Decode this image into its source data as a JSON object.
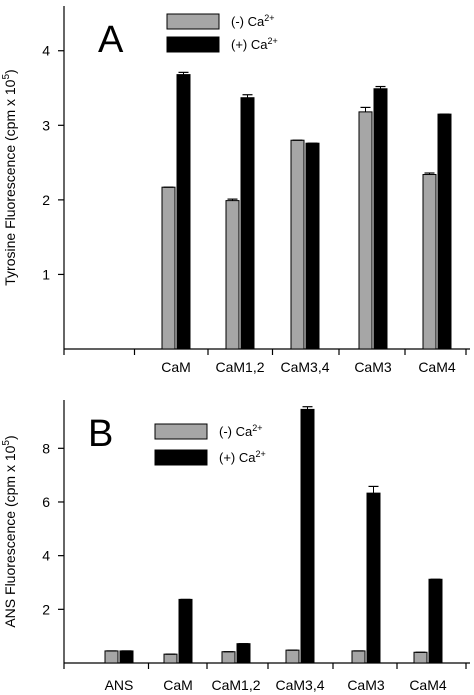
{
  "chart_data": [
    {
      "type": "bar",
      "panel_label": "A",
      "ylabel": "Tyrosine Fluorescence (cpm x 10",
      "ylabel_sup": "5",
      "ylabel_close": ")",
      "ylim": [
        0,
        4.6
      ],
      "yticks": [
        1,
        2,
        3,
        4
      ],
      "categories": [
        "",
        "CaM",
        "CaM1,2",
        "CaM3,4",
        "CaM3",
        "CaM4"
      ],
      "series": [
        {
          "name": "(-) Ca",
          "name_sup": "2+",
          "color": "#a6a6a6",
          "values": [
            null,
            2.17,
            1.99,
            2.8,
            3.18,
            2.34
          ],
          "errors": [
            null,
            0.0,
            0.02,
            0.0,
            0.06,
            0.02
          ]
        },
        {
          "name": "(+) Ca",
          "name_sup": "2+",
          "color": "#000000",
          "values": [
            null,
            3.68,
            3.37,
            2.76,
            3.49,
            3.15
          ],
          "errors": [
            null,
            0.03,
            0.04,
            0.0,
            0.03,
            0.0
          ]
        }
      ],
      "legend_position": "top"
    },
    {
      "type": "bar",
      "panel_label": "B",
      "ylabel": "ANS Fluorescence (cpm x 10",
      "ylabel_sup": "5",
      "ylabel_close": ")",
      "ylim": [
        0,
        9.8
      ],
      "yticks": [
        2,
        4,
        6,
        8
      ],
      "categories": [
        "ANS",
        "CaM",
        "CaM1,2",
        "CaM3,4",
        "CaM3",
        "CaM4"
      ],
      "series": [
        {
          "name": "(-) Ca",
          "name_sup": "2+",
          "color": "#a6a6a6",
          "values": [
            0.45,
            0.33,
            0.42,
            0.48,
            0.45,
            0.4
          ],
          "errors": [
            0,
            0,
            0,
            0,
            0,
            0
          ]
        },
        {
          "name": "(+) Ca",
          "name_sup": "2+",
          "color": "#000000",
          "values": [
            0.45,
            2.37,
            0.72,
            9.45,
            6.33,
            3.12
          ],
          "errors": [
            0,
            0,
            0,
            0.1,
            0.25,
            0
          ]
        }
      ],
      "legend_position": "top"
    }
  ]
}
